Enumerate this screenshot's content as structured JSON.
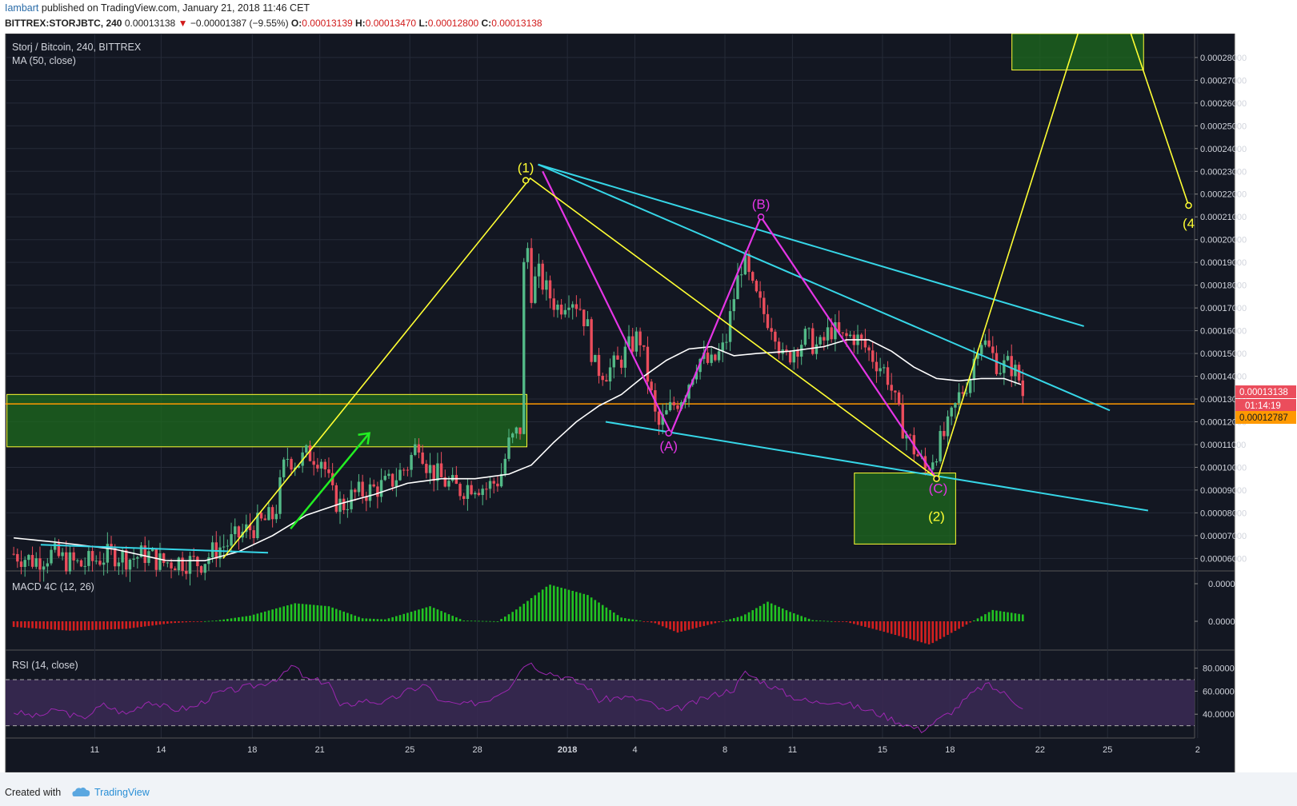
{
  "header": {
    "user": "Iambart",
    "published": "published on TradingView.com, January 21, 2018 11:46 CET",
    "symbol": "BITTREX:STORJBTC, 240",
    "last": "0.00013138",
    "arrow": "▼",
    "change": "−0.00001387 (−9.55%)",
    "o_label": "O:",
    "o_value": "0.00013139",
    "h_label": "H:",
    "h_value": "0.00013470",
    "l_label": "L:",
    "l_value": "0.00012800",
    "c_label": "C:",
    "c_value": "0.00013138"
  },
  "legend": {
    "title": "Storj / Bitcoin, 240, BITTREX",
    "ma": "MA (50, close)",
    "macd": "MACD 4C (12, 26)",
    "rsi": "RSI (14, close)"
  },
  "price_tags": {
    "last": "0.00013138",
    "countdown": "01:14:19",
    "orange_line": "0.00012787"
  },
  "wave_labels": {
    "w1": "(1)",
    "wA": "(A)",
    "wB": "(B)",
    "wC": "(C)",
    "w2": "(2)",
    "w4": "(4"
  },
  "footer": {
    "created": "Created with",
    "brand": "TradingView"
  },
  "colors": {
    "background": "#131722",
    "up": "#53b987",
    "down": "#eb4d5c",
    "ma": "#ffffff",
    "cyan": "#36d6e7",
    "magenta": "#e535e5",
    "yellow": "#ffff33",
    "zone": "#1e6b1e",
    "orange": "#ff9900",
    "rsi_fill": "#3b2a55",
    "rsi_line": "#9c27b0"
  },
  "chart_data": [
    {
      "type": "candlestick",
      "title": "Storj / Bitcoin, 240, BITTREX",
      "overlay": "MA (50, close)",
      "x_ticks": [
        "11",
        "14",
        "18",
        "21",
        "25",
        "28",
        "2018",
        "4",
        "8",
        "11",
        "15",
        "18",
        "22",
        "25",
        "2"
      ],
      "y_ticks": [
        "0.00028000",
        "0.00027000",
        "0.00026000",
        "0.00025000",
        "0.00024000",
        "0.00023000",
        "0.00022000",
        "0.00021000",
        "0.00020000",
        "0.00019000",
        "0.00018000",
        "0.00017000",
        "0.00016000",
        "0.00015000",
        "0.00014000",
        "0.00013000",
        "0.00012000",
        "0.00011000",
        "0.00010000",
        "0.00009000",
        "0.00008000",
        "0.00007000",
        "0.00006000"
      ],
      "y_tick_values": [
        0.00028,
        0.00027,
        0.00026,
        0.00025,
        0.00024,
        0.00023,
        0.00022,
        0.00021,
        0.0002,
        0.00019,
        0.00018,
        0.00017,
        0.00016,
        0.00015,
        0.00014,
        0.00013,
        0.00012,
        0.00011,
        0.0001,
        9e-05,
        8e-05,
        7e-05,
        6e-05
      ],
      "ylim": [
        5.45e-05,
        0.0002905
      ],
      "close_path": [
        {
          "x": 0.0,
          "y": 6.2e-05
        },
        {
          "x": 0.9,
          "y": 5.9e-05
        },
        {
          "x": 1.7,
          "y": 6.2e-05
        },
        {
          "x": 2.3,
          "y": 5.9e-05
        },
        {
          "x": 3.0,
          "y": 5.7e-05
        },
        {
          "x": 3.8,
          "y": 6e-05
        },
        {
          "x": 4.4,
          "y": 6.2e-05
        },
        {
          "x": 5.2,
          "y": 6e-05
        },
        {
          "x": 5.9,
          "y": 6.2e-05
        },
        {
          "x": 6.6,
          "y": 5.8e-05
        },
        {
          "x": 7.3,
          "y": 5.9e-05
        },
        {
          "x": 8.3,
          "y": 5.8e-05
        },
        {
          "x": 9.0,
          "y": 6.4e-05
        },
        {
          "x": 9.6,
          "y": 6.7e-05
        },
        {
          "x": 10.3,
          "y": 7.2e-05
        },
        {
          "x": 10.9,
          "y": 7.5e-05
        },
        {
          "x": 11.6,
          "y": 7.9e-05
        },
        {
          "x": 12.1,
          "y": 0.000105
        },
        {
          "x": 12.6,
          "y": 0.000102
        },
        {
          "x": 13.1,
          "y": 0.000106
        },
        {
          "x": 13.7,
          "y": 0.000104
        },
        {
          "x": 14.2,
          "y": 8.6e-05
        },
        {
          "x": 14.6,
          "y": 8.3e-05
        },
        {
          "x": 15.1,
          "y": 8.8e-05
        },
        {
          "x": 15.9,
          "y": 9e-05
        },
        {
          "x": 16.7,
          "y": 9.3e-05
        },
        {
          "x": 17.5,
          "y": 0.000101
        },
        {
          "x": 18.0,
          "y": 0.000112
        },
        {
          "x": 18.4,
          "y": 0.0001
        },
        {
          "x": 19.1,
          "y": 9.4e-05
        },
        {
          "x": 19.8,
          "y": 9e-05
        },
        {
          "x": 20.4,
          "y": 9.3e-05
        },
        {
          "x": 21.0,
          "y": 9.1e-05
        },
        {
          "x": 21.6,
          "y": 9.5e-05
        },
        {
          "x": 22.0,
          "y": 0.00011
        },
        {
          "x": 22.5,
          "y": 0.000117
        },
        {
          "x": 22.75,
          "y": 0.000223
        },
        {
          "x": 22.9,
          "y": 0.000175
        },
        {
          "x": 23.3,
          "y": 0.000185
        },
        {
          "x": 23.7,
          "y": 0.000177
        },
        {
          "x": 24.2,
          "y": 0.00017
        },
        {
          "x": 24.7,
          "y": 0.000176
        },
        {
          "x": 25.2,
          "y": 0.00017
        },
        {
          "x": 25.5,
          "y": 0.000161
        },
        {
          "x": 25.8,
          "y": 0.000144
        },
        {
          "x": 26.3,
          "y": 0.000142
        },
        {
          "x": 26.8,
          "y": 0.000145
        },
        {
          "x": 27.3,
          "y": 0.000152
        },
        {
          "x": 27.8,
          "y": 0.000158
        },
        {
          "x": 28.2,
          "y": 0.000138
        },
        {
          "x": 28.6,
          "y": 0.000117
        },
        {
          "x": 29.2,
          "y": 0.000126
        },
        {
          "x": 29.8,
          "y": 0.000133
        },
        {
          "x": 30.4,
          "y": 0.000148
        },
        {
          "x": 31.0,
          "y": 0.000145
        },
        {
          "x": 31.6,
          "y": 0.000153
        },
        {
          "x": 32.0,
          "y": 0.000175
        },
        {
          "x": 32.4,
          "y": 0.000192
        },
        {
          "x": 32.8,
          "y": 0.000178
        },
        {
          "x": 33.3,
          "y": 0.000168
        },
        {
          "x": 33.8,
          "y": 0.000162
        },
        {
          "x": 34.2,
          "y": 0.000146
        },
        {
          "x": 34.7,
          "y": 0.000153
        },
        {
          "x": 35.2,
          "y": 0.000157
        },
        {
          "x": 35.8,
          "y": 0.000152
        },
        {
          "x": 36.3,
          "y": 0.000161
        },
        {
          "x": 36.8,
          "y": 0.000156
        },
        {
          "x": 37.3,
          "y": 0.000158
        },
        {
          "x": 37.8,
          "y": 0.000153
        },
        {
          "x": 38.3,
          "y": 0.000147
        },
        {
          "x": 38.8,
          "y": 0.000141
        },
        {
          "x": 39.4,
          "y": 0.00012
        },
        {
          "x": 40.0,
          "y": 0.000108
        },
        {
          "x": 40.5,
          "y": 9.9e-05
        },
        {
          "x": 40.9,
          "y": 0.000106
        },
        {
          "x": 41.5,
          "y": 0.000117
        },
        {
          "x": 42.0,
          "y": 0.000131
        },
        {
          "x": 42.5,
          "y": 0.00014
        },
        {
          "x": 42.9,
          "y": 0.000158
        },
        {
          "x": 43.3,
          "y": 0.000152
        },
        {
          "x": 43.8,
          "y": 0.000144
        },
        {
          "x": 44.3,
          "y": 0.000145
        },
        {
          "x": 44.7,
          "y": 0.000138
        },
        {
          "x": 44.85,
          "y": 0.0001314
        }
      ],
      "ma_path": [
        {
          "x": 0.0,
          "y": 6.9e-05
        },
        {
          "x": 2.0,
          "y": 6.7e-05
        },
        {
          "x": 4.5,
          "y": 6.4e-05
        },
        {
          "x": 6.8,
          "y": 5.9e-05
        },
        {
          "x": 8.5,
          "y": 5.9e-05
        },
        {
          "x": 10.0,
          "y": 6.3e-05
        },
        {
          "x": 11.5,
          "y": 7e-05
        },
        {
          "x": 13.0,
          "y": 7.9e-05
        },
        {
          "x": 14.5,
          "y": 8.4e-05
        },
        {
          "x": 16.0,
          "y": 8.8e-05
        },
        {
          "x": 17.5,
          "y": 9.3e-05
        },
        {
          "x": 19.0,
          "y": 9.5e-05
        },
        {
          "x": 20.5,
          "y": 9.5e-05
        },
        {
          "x": 22.0,
          "y": 9.7e-05
        },
        {
          "x": 23.0,
          "y": 0.000101
        },
        {
          "x": 24.0,
          "y": 0.000111
        },
        {
          "x": 25.0,
          "y": 0.00012
        },
        {
          "x": 26.0,
          "y": 0.000127
        },
        {
          "x": 27.0,
          "y": 0.000132
        },
        {
          "x": 28.0,
          "y": 0.00014
        },
        {
          "x": 29.0,
          "y": 0.000147
        },
        {
          "x": 30.0,
          "y": 0.000152
        },
        {
          "x": 31.0,
          "y": 0.000153
        },
        {
          "x": 32.0,
          "y": 0.000149
        },
        {
          "x": 33.0,
          "y": 0.00015
        },
        {
          "x": 34.5,
          "y": 0.000151
        },
        {
          "x": 36.0,
          "y": 0.000153
        },
        {
          "x": 37.0,
          "y": 0.000156
        },
        {
          "x": 38.0,
          "y": 0.000156
        },
        {
          "x": 39.0,
          "y": 0.000151
        },
        {
          "x": 40.0,
          "y": 0.000144
        },
        {
          "x": 41.0,
          "y": 0.000139
        },
        {
          "x": 42.0,
          "y": 0.000138
        },
        {
          "x": 43.0,
          "y": 0.000139
        },
        {
          "x": 44.0,
          "y": 0.000139
        },
        {
          "x": 44.85,
          "y": 0.000136
        }
      ],
      "zones": [
        {
          "x0": -0.3,
          "x1": 22.8,
          "y0": 0.000109,
          "y1": 0.000132
        },
        {
          "x0": 37.35,
          "x1": 41.85,
          "y0": 6.63e-05,
          "y1": 9.75e-05
        },
        {
          "x0": 44.35,
          "x1": 50.2,
          "y0": 0.0002745,
          "y1": 0.0002905
        }
      ],
      "horizontal_line": 0.00012787,
      "annotations": {
        "cyan_lines": [
          {
            "x0": 1.2,
            "y0": 6.6e-05,
            "x1": 11.3,
            "y1": 6.25e-05
          },
          {
            "x0": 23.3,
            "y0": 0.000233,
            "x1": 47.55,
            "y1": 0.000162
          },
          {
            "x0": 23.3,
            "y0": 0.000233,
            "x1": 48.7,
            "y1": 0.000125
          },
          {
            "x0": 26.3,
            "y0": 0.00012,
            "x1": 50.4,
            "y1": 8.1e-05
          }
        ],
        "magenta_path": [
          {
            "x": 23.5,
            "y": 0.00023
          },
          {
            "x": 29.2,
            "y": 0.000115
          },
          {
            "x": 33.2,
            "y": 0.00021
          },
          {
            "x": 41.0,
            "y": 9.5e-05
          }
        ],
        "yellow_path": [
          {
            "x": 9.3,
            "y": 6e-05
          },
          {
            "x": 22.95,
            "y": 0.000227
          },
          {
            "x": 41.05,
            "y": 9.5e-05
          },
          {
            "x": 47.3,
            "y": 0.000291
          },
          {
            "x": 49.55,
            "y": 0.000293
          },
          {
            "x": 52.2,
            "y": 0.000215
          }
        ],
        "green_arrow": {
          "x0": 12.3,
          "y0": 7.3e-05,
          "x1": 15.8,
          "y1": 0.000115
        },
        "wave_points": [
          {
            "label": "(1)",
            "x": 22.75,
            "y": 0.000226
          },
          {
            "label": "(A)",
            "x": 29.1,
            "y": 0.000115
          },
          {
            "label": "(B)",
            "x": 33.2,
            "y": 0.00021
          },
          {
            "label": "(C)",
            "x": 41.0,
            "y": 9.5e-05
          },
          {
            "label": "(2)",
            "x": 41.0,
            "y": 9.5e-05
          },
          {
            "label": "(4",
            "x": 52.2,
            "y": 0.000215
          }
        ]
      }
    },
    {
      "type": "bar",
      "title": "MACD 4C (12, 26)",
      "y_ticks": [
        "0.0000",
        "0.0000"
      ],
      "histogram_profile": [
        {
          "x": 0.0,
          "y": -0.15
        },
        {
          "x": 2.5,
          "y": -0.25
        },
        {
          "x": 5.0,
          "y": -0.2
        },
        {
          "x": 7.0,
          "y": -0.05
        },
        {
          "x": 9.0,
          "y": 0.02
        },
        {
          "x": 10.5,
          "y": 0.15
        },
        {
          "x": 12.5,
          "y": 0.48
        },
        {
          "x": 14.0,
          "y": 0.4
        },
        {
          "x": 15.5,
          "y": 0.08
        },
        {
          "x": 16.5,
          "y": 0.05
        },
        {
          "x": 18.5,
          "y": 0.4
        },
        {
          "x": 20.0,
          "y": 0.02
        },
        {
          "x": 21.5,
          "y": 0.0
        },
        {
          "x": 22.3,
          "y": 0.3
        },
        {
          "x": 23.8,
          "y": 0.98
        },
        {
          "x": 25.5,
          "y": 0.7
        },
        {
          "x": 27.0,
          "y": 0.1
        },
        {
          "x": 28.5,
          "y": -0.05
        },
        {
          "x": 29.5,
          "y": -0.3
        },
        {
          "x": 30.5,
          "y": -0.15
        },
        {
          "x": 31.5,
          "y": 0.0
        },
        {
          "x": 32.4,
          "y": 0.15
        },
        {
          "x": 33.5,
          "y": 0.52
        },
        {
          "x": 34.5,
          "y": 0.25
        },
        {
          "x": 35.5,
          "y": 0.03
        },
        {
          "x": 37.0,
          "y": -0.02
        },
        {
          "x": 38.5,
          "y": -0.25
        },
        {
          "x": 40.7,
          "y": -0.62
        },
        {
          "x": 42.0,
          "y": -0.2
        },
        {
          "x": 42.6,
          "y": 0.0
        },
        {
          "x": 43.5,
          "y": 0.3
        },
        {
          "x": 44.85,
          "y": 0.18
        }
      ]
    },
    {
      "type": "line",
      "title": "RSI (14, close)",
      "y_ticks": [
        "80.0000",
        "60.0000",
        "40.0000"
      ],
      "y_tick_values": [
        80,
        60,
        40
      ],
      "ylim": [
        20,
        95
      ],
      "bands": [
        70,
        30
      ],
      "values": [
        {
          "x": 0.0,
          "y": 42
        },
        {
          "x": 1.0,
          "y": 38
        },
        {
          "x": 2.0,
          "y": 44
        },
        {
          "x": 3.0,
          "y": 36
        },
        {
          "x": 4.0,
          "y": 48
        },
        {
          "x": 5.0,
          "y": 40
        },
        {
          "x": 6.0,
          "y": 52
        },
        {
          "x": 7.0,
          "y": 44
        },
        {
          "x": 8.0,
          "y": 46
        },
        {
          "x": 9.0,
          "y": 58
        },
        {
          "x": 10.0,
          "y": 62
        },
        {
          "x": 11.0,
          "y": 66
        },
        {
          "x": 12.0,
          "y": 74
        },
        {
          "x": 12.4,
          "y": 83
        },
        {
          "x": 13.0,
          "y": 70
        },
        {
          "x": 14.0,
          "y": 68
        },
        {
          "x": 14.5,
          "y": 46
        },
        {
          "x": 15.5,
          "y": 52
        },
        {
          "x": 16.5,
          "y": 50
        },
        {
          "x": 17.5,
          "y": 60
        },
        {
          "x": 18.3,
          "y": 66
        },
        {
          "x": 19.0,
          "y": 50
        },
        {
          "x": 20.0,
          "y": 48
        },
        {
          "x": 21.0,
          "y": 52
        },
        {
          "x": 22.0,
          "y": 64
        },
        {
          "x": 22.8,
          "y": 86
        },
        {
          "x": 23.5,
          "y": 78
        },
        {
          "x": 24.5,
          "y": 72
        },
        {
          "x": 25.5,
          "y": 64
        },
        {
          "x": 26.0,
          "y": 52
        },
        {
          "x": 27.0,
          "y": 55
        },
        {
          "x": 28.0,
          "y": 52
        },
        {
          "x": 29.0,
          "y": 42
        },
        {
          "x": 30.0,
          "y": 48
        },
        {
          "x": 31.0,
          "y": 56
        },
        {
          "x": 32.0,
          "y": 62
        },
        {
          "x": 32.5,
          "y": 76
        },
        {
          "x": 33.5,
          "y": 66
        },
        {
          "x": 34.5,
          "y": 56
        },
        {
          "x": 35.5,
          "y": 50
        },
        {
          "x": 36.5,
          "y": 52
        },
        {
          "x": 37.5,
          "y": 46
        },
        {
          "x": 38.5,
          "y": 40
        },
        {
          "x": 39.5,
          "y": 32
        },
        {
          "x": 40.3,
          "y": 26
        },
        {
          "x": 41.0,
          "y": 34
        },
        {
          "x": 41.8,
          "y": 44
        },
        {
          "x": 42.6,
          "y": 58
        },
        {
          "x": 43.2,
          "y": 66
        },
        {
          "x": 44.0,
          "y": 58
        },
        {
          "x": 44.85,
          "y": 46
        }
      ]
    }
  ]
}
